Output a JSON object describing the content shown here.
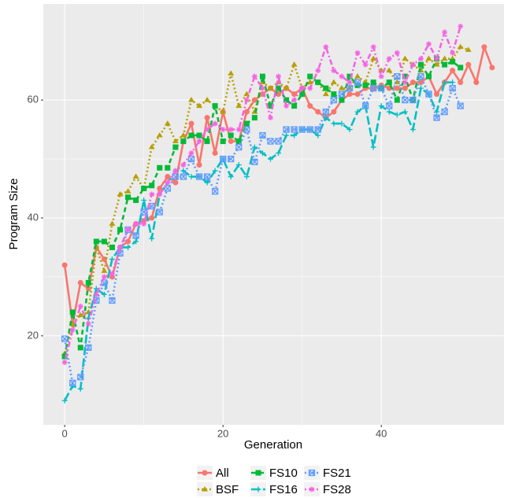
{
  "chart_data": {
    "type": "line",
    "x_label": "Generation",
    "y_label": "Program Size",
    "xlim": [
      -2.7,
      55.5
    ],
    "ylim": [
      4.9,
      76.3
    ],
    "xticks": [
      0,
      20,
      40
    ],
    "yticks": [
      20,
      40,
      60
    ],
    "grid": true,
    "legend": "bottom",
    "x": [
      0,
      1,
      2,
      3,
      4,
      5,
      6,
      7,
      8,
      9,
      10,
      11,
      12,
      13,
      14,
      15,
      16,
      17,
      18,
      19,
      20,
      21,
      22,
      23,
      24,
      25,
      26,
      27,
      28,
      29,
      30,
      31,
      32,
      33,
      34,
      35,
      36,
      37,
      38,
      39,
      40,
      41,
      42,
      43,
      44,
      45,
      46,
      47,
      48,
      49,
      50,
      51,
      52,
      53,
      54
    ],
    "series": [
      {
        "name": "All",
        "color": "#F8766D",
        "linetype": "solid",
        "shape": "circle",
        "values": [
          32,
          22,
          29,
          28,
          35,
          33,
          30,
          35,
          36,
          39,
          39.5,
          40,
          45,
          47,
          46,
          53,
          56,
          49,
          57,
          51,
          58,
          53,
          53,
          58,
          60,
          61,
          62,
          61,
          62,
          61,
          62,
          59,
          58,
          57,
          58,
          60,
          61,
          61,
          62,
          62,
          62.5,
          62,
          62,
          62,
          63,
          63,
          64,
          61,
          63,
          65,
          63,
          66,
          63,
          69,
          65.5
        ]
      },
      {
        "name": "BSF",
        "color": "#B79F00",
        "linetype": "dotted",
        "shape": "triangle",
        "values": [
          17,
          22,
          23.5,
          24,
          35,
          31,
          39,
          44,
          44.5,
          47,
          45,
          52,
          54,
          56,
          53,
          54,
          60,
          59,
          60,
          59,
          58,
          64.5,
          59,
          61,
          58,
          63,
          62,
          63,
          62,
          66,
          62,
          63,
          63,
          61,
          63,
          62,
          62,
          64,
          63,
          67,
          65,
          65,
          63,
          67,
          66,
          65,
          67,
          66,
          67,
          67,
          69,
          68.5,
          null,
          null,
          null
        ]
      },
      {
        "name": "FS10",
        "color": "#00BA38",
        "linetype": "dashed",
        "shape": "square",
        "values": [
          16.5,
          24,
          18,
          29,
          36,
          36,
          35,
          38,
          43.5,
          43,
          45,
          45.5,
          48.5,
          48.5,
          52,
          53,
          54,
          54,
          53,
          59,
          53,
          54,
          53,
          56,
          57,
          64,
          59,
          62,
          60,
          59,
          61,
          64,
          63,
          62,
          61,
          60,
          64,
          62.5,
          62.5,
          63,
          62,
          63,
          60,
          64,
          60,
          66,
          64,
          67,
          66,
          66.5,
          65.5,
          null,
          null,
          null,
          null
        ]
      },
      {
        "name": "FS16",
        "color": "#00BFC4",
        "linetype": "longdash",
        "shape": "plus",
        "values": [
          9,
          11.5,
          11,
          23,
          28,
          27,
          33,
          35,
          35,
          36,
          43,
          36.5,
          44,
          46,
          48,
          48,
          47,
          47,
          46,
          48,
          50,
          47,
          49,
          47,
          52,
          51,
          50,
          51,
          54,
          54,
          55,
          55,
          54,
          57,
          56,
          56,
          55,
          58,
          59,
          52,
          59,
          58,
          57.5,
          58,
          55,
          62,
          61,
          58,
          63,
          63,
          null,
          null,
          null,
          null,
          null
        ]
      },
      {
        "name": "FS21",
        "color": "#619CFF",
        "linetype": "dotted",
        "shape": "boxx",
        "values": [
          19.5,
          12,
          13,
          18,
          26,
          29,
          26,
          34,
          38,
          37,
          41,
          42,
          41,
          45,
          47,
          47,
          50,
          47,
          47,
          44.5,
          50,
          50,
          52,
          55,
          49.5,
          54,
          53,
          53,
          55,
          55,
          55,
          55,
          55,
          58,
          60,
          61,
          62,
          63,
          59,
          62,
          62,
          59,
          64,
          60,
          60,
          64,
          61,
          57,
          58,
          62,
          59,
          null,
          null,
          null,
          null
        ]
      },
      {
        "name": "FS28",
        "color": "#F564E3",
        "linetype": "dotdash",
        "shape": "asterisk",
        "values": [
          15.5,
          21,
          25,
          22,
          27,
          30,
          30.5,
          35,
          38,
          39,
          39,
          44,
          44,
          46,
          48,
          49,
          51,
          53,
          55,
          56,
          55,
          55,
          55,
          60,
          64,
          62,
          57,
          64,
          59,
          60,
          62,
          62,
          65,
          69,
          65,
          64,
          63,
          68,
          66,
          69,
          64,
          67,
          68,
          63,
          66,
          67,
          69.5,
          67,
          71.5,
          68,
          72.5,
          null,
          null,
          null,
          null
        ]
      }
    ]
  }
}
